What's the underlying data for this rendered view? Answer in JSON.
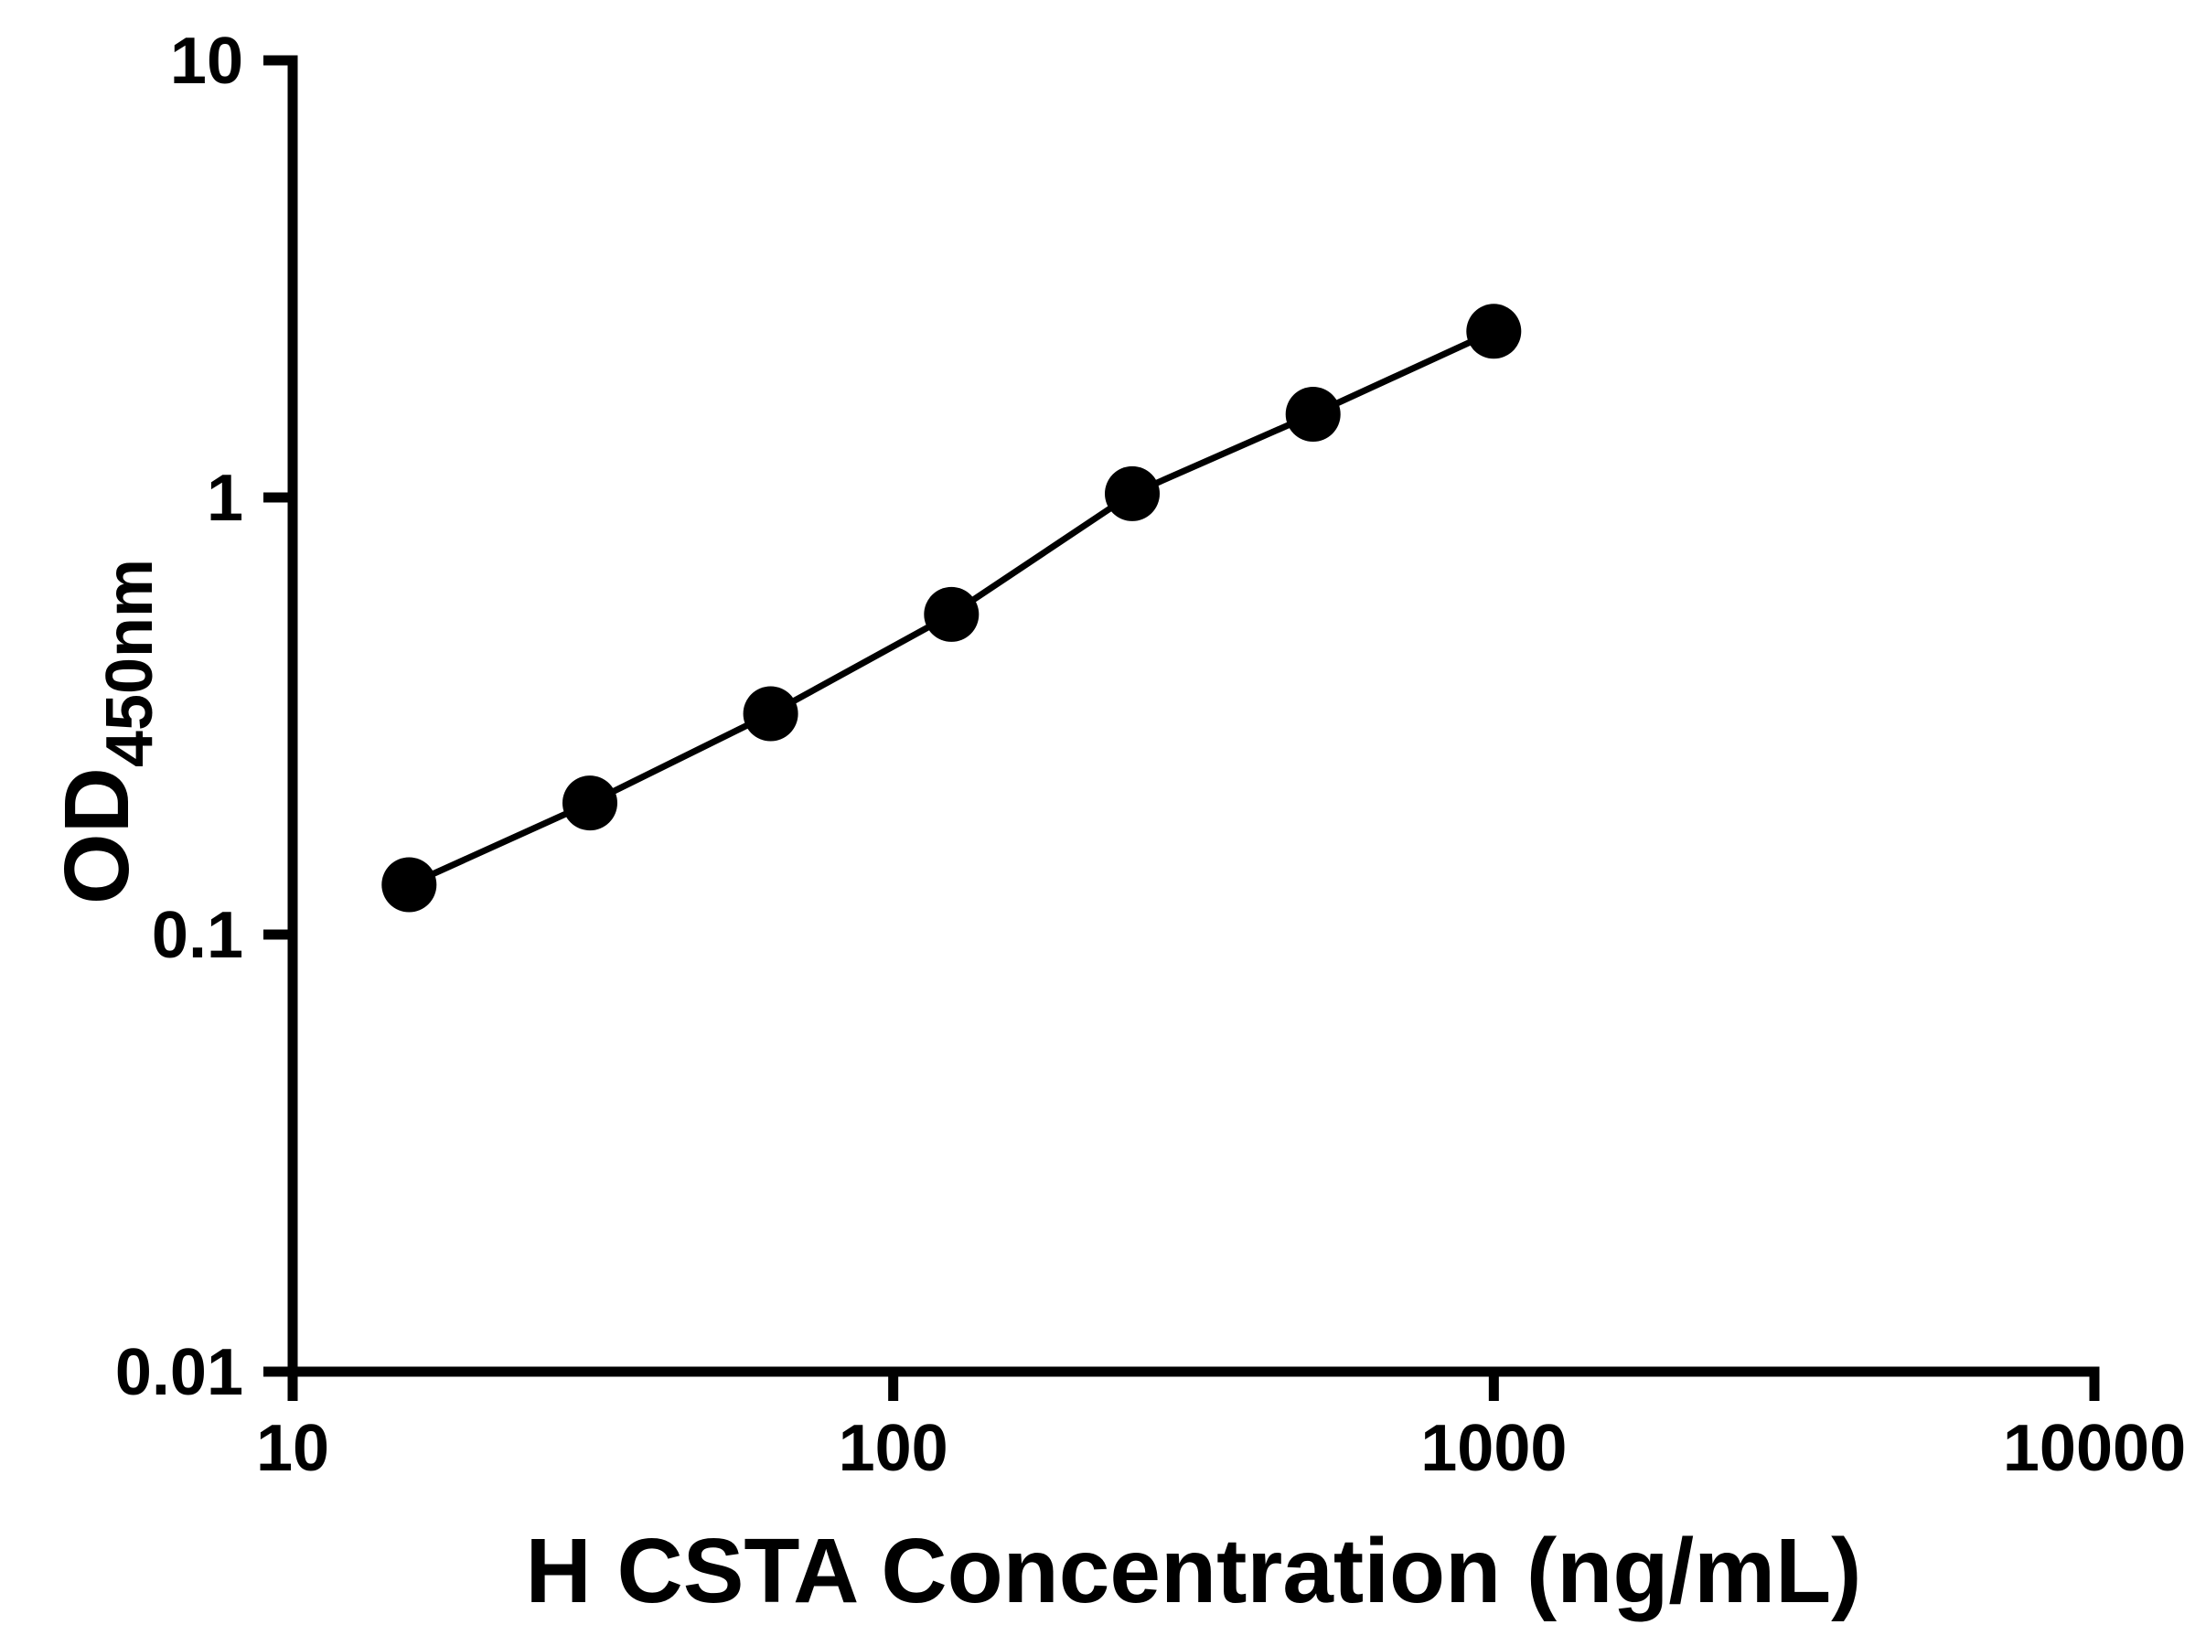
{
  "chart_data": {
    "type": "line",
    "title": "",
    "xlabel": "H CSTA Concentration (ng/mL)",
    "ylabel": "OD450nm",
    "ylabel_main": "OD",
    "ylabel_sub": "450nm",
    "xscale": "log",
    "yscale": "log",
    "xlim": [
      10,
      10000
    ],
    "ylim": [
      0.01,
      10
    ],
    "x_ticks": [
      10,
      100,
      1000,
      10000
    ],
    "x_tick_labels": [
      "10",
      "100",
      "1000",
      "10000"
    ],
    "y_ticks": [
      0.01,
      0.1,
      1,
      10
    ],
    "y_tick_labels": [
      "0.01",
      "0.1",
      "1",
      "10"
    ],
    "grid": false,
    "legend": "none",
    "x": [
      15.625,
      31.25,
      62.5,
      125,
      250,
      500,
      1000
    ],
    "y": [
      0.13,
      0.2,
      0.32,
      0.54,
      1.02,
      1.55,
      2.4
    ],
    "marker": "filled-circle",
    "colors": {
      "axis": "#000000",
      "line": "#000000",
      "marker": "#000000",
      "background": "#ffffff"
    }
  }
}
